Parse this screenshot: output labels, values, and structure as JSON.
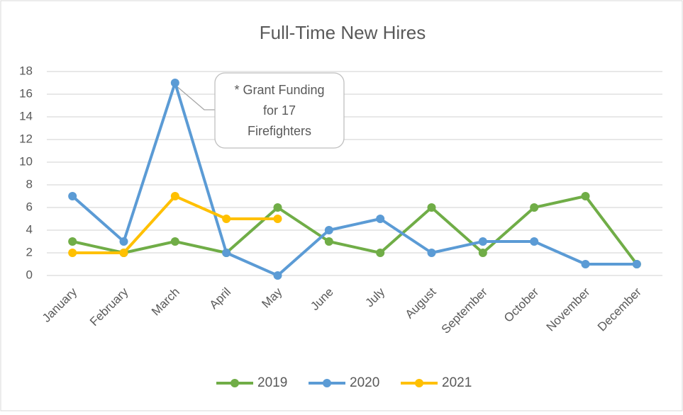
{
  "chart_data": {
    "type": "line",
    "title": "Full-Time New Hires",
    "categories": [
      "January",
      "February",
      "March",
      "April",
      "May",
      "June",
      "July",
      "August",
      "September",
      "October",
      "November",
      "December"
    ],
    "series": [
      {
        "name": "2019",
        "color": "#70ad47",
        "values": [
          3,
          2,
          3,
          2,
          6,
          3,
          2,
          6,
          2,
          6,
          7,
          1
        ]
      },
      {
        "name": "2020",
        "color": "#5b9bd5",
        "values": [
          7,
          3,
          17,
          2,
          0,
          4,
          5,
          2,
          3,
          3,
          1,
          1
        ]
      },
      {
        "name": "2021",
        "color": "#ffc000",
        "values": [
          2,
          2,
          7,
          5,
          5,
          null,
          null,
          null,
          null,
          null,
          null,
          null
        ]
      }
    ],
    "ylim": [
      0,
      18
    ],
    "yticks": [
      0,
      2,
      4,
      6,
      8,
      10,
      12,
      14,
      16,
      18
    ],
    "grid": true,
    "legend": "bottom",
    "annotation": [
      "* Grant Funding",
      "for 17",
      "Firefighters"
    ]
  }
}
